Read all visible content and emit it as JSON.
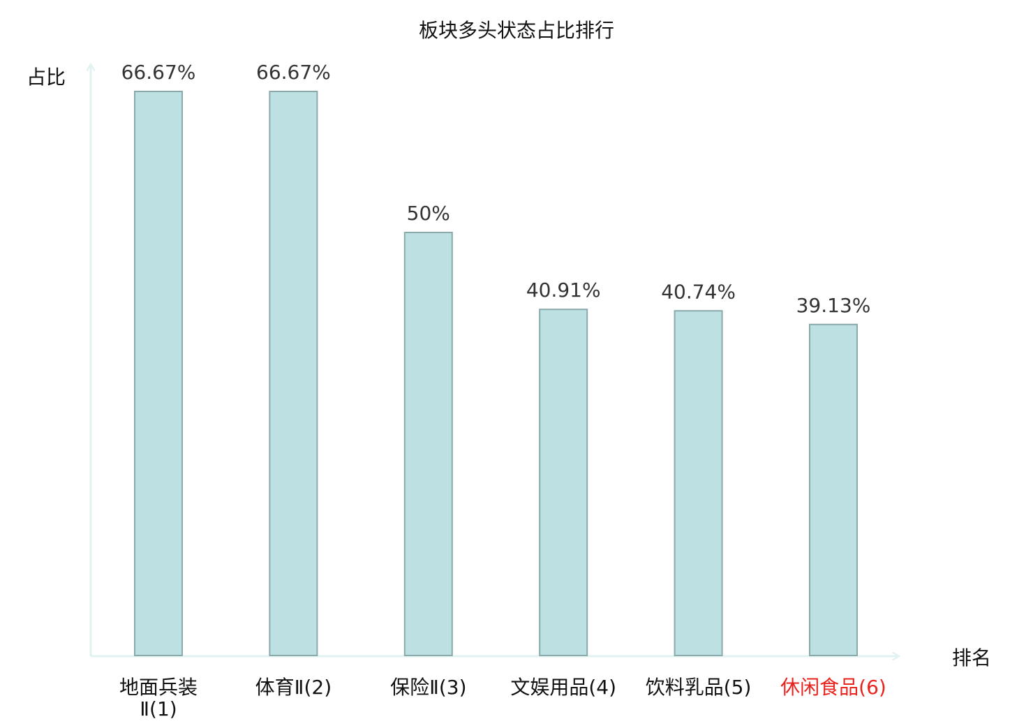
{
  "chart_data": {
    "type": "bar",
    "title": "板块多头状态占比排行",
    "ylabel": "占比",
    "xlabel": "排名",
    "categories": [
      [
        "地面兵装",
        "Ⅱ(1)"
      ],
      [
        "体育Ⅱ(2)"
      ],
      [
        "保险Ⅱ(3)"
      ],
      [
        "文娱用品(4)"
      ],
      [
        "饮料乳品(5)"
      ],
      [
        "休闲食品(6)"
      ]
    ],
    "values": [
      66.67,
      66.67,
      50,
      40.91,
      40.74,
      39.13
    ],
    "value_labels": [
      "66.67%",
      "66.67%",
      "50%",
      "40.91%",
      "40.74%",
      "39.13%"
    ],
    "highlight_category_index": 5,
    "ylim": [
      0,
      66.67
    ],
    "grid": false,
    "legend": "none"
  },
  "colors": {
    "bar_fill": "#bde1e3",
    "bar_stroke": "#8aa9aa",
    "axis": "#e0f3f1",
    "text": "#111111",
    "value_text": "#333333",
    "highlight": "#e8231e"
  }
}
